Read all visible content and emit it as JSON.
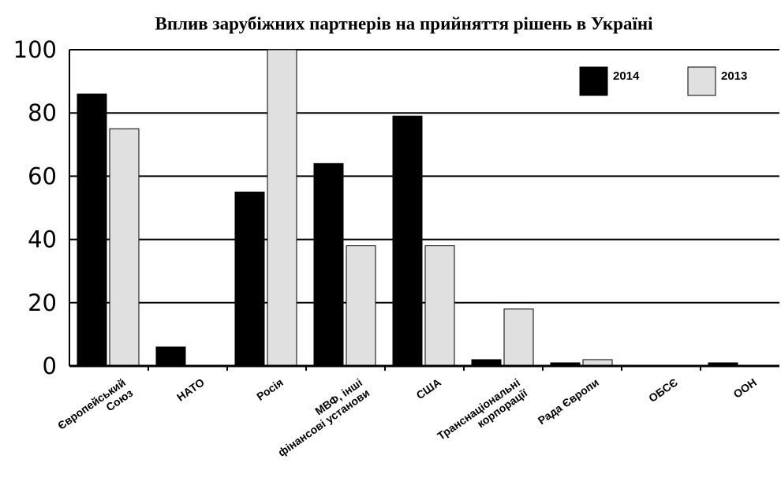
{
  "chart_data": {
    "type": "bar",
    "title": "Вплив зарубіжних партнерів на прийняття рішень в Україні",
    "categories": [
      "Європейський\nСоюз",
      "НАТО",
      "Росія",
      "МВФ, інші\nфінансові установи",
      "США",
      "Транснаціональні\nкорпорації",
      "Рада Європи",
      "ОБСЄ",
      "ООН"
    ],
    "series": [
      {
        "name": "2014",
        "color": "#000000",
        "values": [
          86,
          6,
          55,
          64,
          79,
          2,
          1,
          0,
          1
        ]
      },
      {
        "name": "2013",
        "color": "#e0e0e0",
        "values": [
          75,
          0,
          100,
          38,
          38,
          18,
          2,
          0,
          0
        ]
      }
    ],
    "ylim": [
      0,
      100
    ],
    "yticks": [
      0,
      20,
      40,
      60,
      80,
      100
    ],
    "grid": true,
    "legend": "upper right"
  }
}
